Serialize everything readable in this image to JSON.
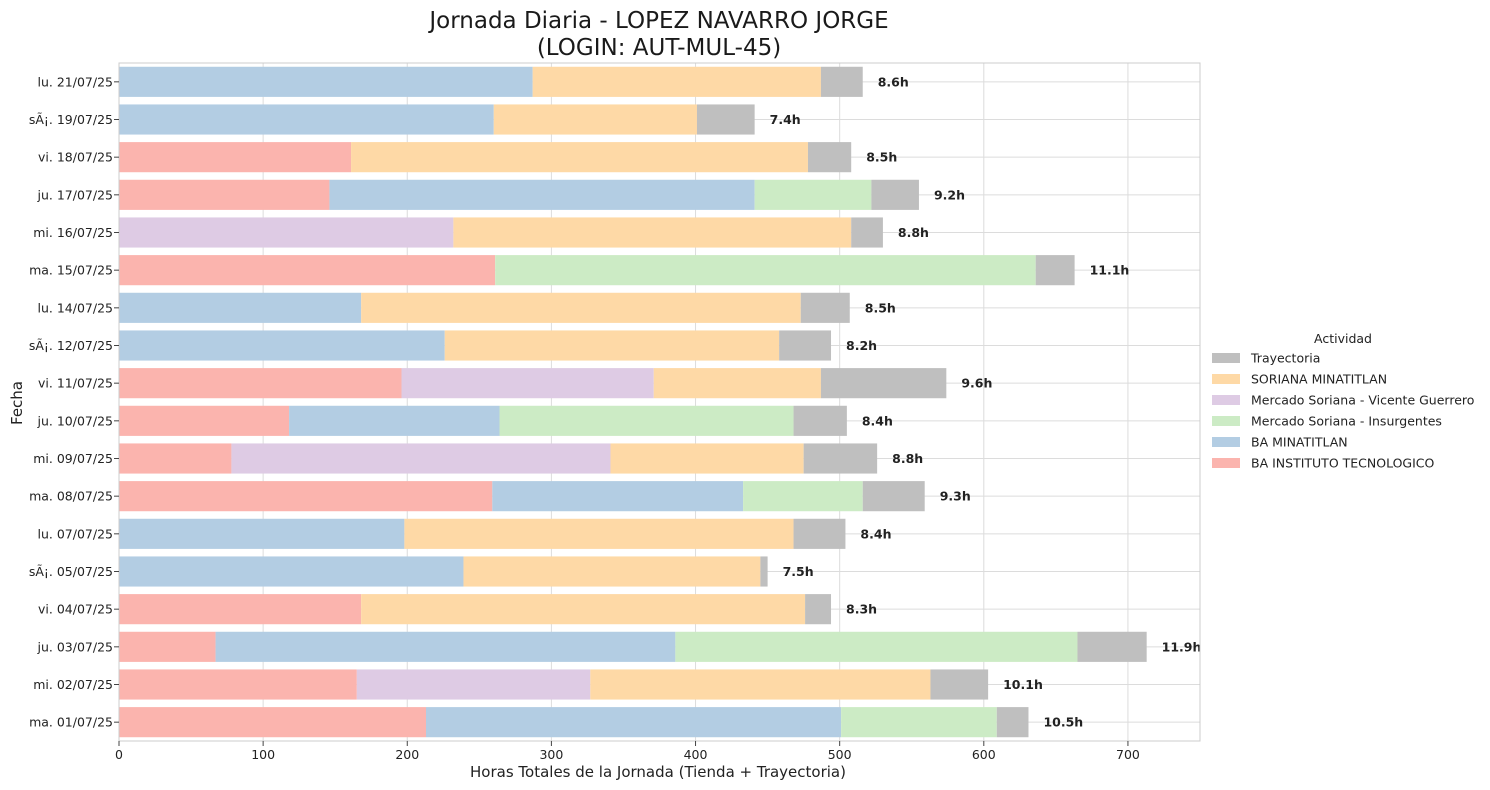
{
  "chart_data": {
    "type": "bar",
    "orientation": "horizontal",
    "stacked": true,
    "title_line1": "Jornada Diaria - LOPEZ NAVARRO JORGE",
    "title_line2": "(LOGIN: AUT-MUL-45)",
    "xlabel": "Horas Totales de la Jornada (Tienda + Trayectoria)",
    "ylabel": "Fecha",
    "xlim": [
      0,
      750
    ],
    "xticks": [
      0,
      100,
      200,
      300,
      400,
      500,
      600,
      700
    ],
    "grid": true,
    "legend_title": "Actividad",
    "legend_placement": "center-right",
    "legend_order": [
      "Trayectoria",
      "SORIANA MINATITLAN",
      "Mercado Soriana - Vicente Guerrero",
      "Mercado Soriana - Insurgentes",
      "BA MINATITLAN",
      "BA INSTITUTO TECNOLOGICO"
    ],
    "colors": {
      "Trayectoria": "#bfbfbf",
      "SORIANA MINATITLAN": "#fed9a6",
      "Mercado Soriana - Vicente Guerrero": "#decbe4",
      "Mercado Soriana - Insurgentes": "#ccebc5",
      "BA MINATITLAN": "#b3cde3",
      "BA INSTITUTO TECNOLOGICO": "#fbb4ae"
    },
    "stack_order": [
      "BA INSTITUTO TECNOLOGICO",
      "BA MINATITLAN",
      "Mercado Soriana - Vicente Guerrero",
      "Mercado Soriana - Insurgentes",
      "SORIANA MINATITLAN",
      "Trayectoria"
    ],
    "categories": [
      "lu. 21/07/25",
      "sÃ¡. 19/07/25",
      "vi. 18/07/25",
      "ju. 17/07/25",
      "mi. 16/07/25",
      "ma. 15/07/25",
      "lu. 14/07/25",
      "sÃ¡. 12/07/25",
      "vi. 11/07/25",
      "ju. 10/07/25",
      "mi. 09/07/25",
      "ma. 08/07/25",
      "lu. 07/07/25",
      "sÃ¡. 05/07/25",
      "vi. 04/07/25",
      "ju. 03/07/25",
      "mi. 02/07/25",
      "ma. 01/07/25"
    ],
    "series": [
      {
        "name": "BA INSTITUTO TECNOLOGICO",
        "values": [
          0,
          0,
          161,
          146,
          0,
          261,
          0,
          0,
          196,
          118,
          78,
          259,
          0,
          0,
          168,
          67,
          165,
          213
        ]
      },
      {
        "name": "BA MINATITLAN",
        "values": [
          287,
          260,
          0,
          295,
          0,
          0,
          168,
          226,
          0,
          146,
          0,
          174,
          198,
          239,
          0,
          319,
          0,
          288
        ]
      },
      {
        "name": "Mercado Soriana - Vicente Guerrero",
        "values": [
          0,
          0,
          0,
          0,
          232,
          0,
          0,
          0,
          175,
          0,
          263,
          0,
          0,
          0,
          0,
          0,
          162,
          0
        ]
      },
      {
        "name": "Mercado Soriana - Insurgentes",
        "values": [
          0,
          0,
          0,
          81,
          0,
          375,
          0,
          0,
          0,
          204,
          0,
          83,
          0,
          0,
          0,
          279,
          0,
          108
        ]
      },
      {
        "name": "SORIANA MINATITLAN",
        "values": [
          200,
          141,
          317,
          0,
          276,
          0,
          305,
          232,
          116,
          0,
          134,
          0,
          270,
          206,
          308,
          0,
          236,
          0
        ]
      },
      {
        "name": "Trayectoria",
        "values": [
          29,
          40,
          30,
          33,
          22,
          27,
          34,
          36,
          87,
          37,
          51,
          43,
          36,
          5,
          18,
          48,
          40,
          22
        ]
      }
    ],
    "totals_labels": [
      "8.6h",
      "7.4h",
      "8.5h",
      "9.2h",
      "8.8h",
      "11.1h",
      "8.5h",
      "8.2h",
      "9.6h",
      "8.4h",
      "8.8h",
      "9.3h",
      "8.4h",
      "7.5h",
      "8.3h",
      "11.9h",
      "10.1h",
      "10.5h"
    ]
  }
}
